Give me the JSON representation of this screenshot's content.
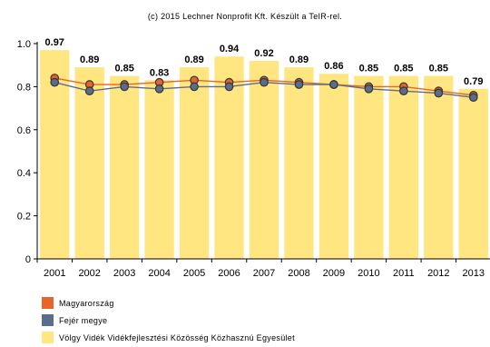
{
  "chart_data": {
    "type": "bar",
    "title": "(c) 2015 Lechner Nonprofit Kft. Készült a TeIR-rel.",
    "categories": [
      "2001",
      "2002",
      "2003",
      "2004",
      "2005",
      "2006",
      "2007",
      "2008",
      "2009",
      "2010",
      "2011",
      "2012",
      "2013"
    ],
    "ylim": [
      0,
      1.0
    ],
    "yticks": [
      "0",
      "0.2",
      "0.4",
      "0.6",
      "0.8",
      "1.0"
    ],
    "grid": false,
    "series": [
      {
        "name": "Völgy Vidék Vidékfejlesztési Közösség Közhasznú Egyesület",
        "kind": "bar",
        "color": "#FFE680",
        "values": [
          0.97,
          0.89,
          0.85,
          0.83,
          0.89,
          0.94,
          0.92,
          0.89,
          0.86,
          0.85,
          0.85,
          0.85,
          0.79
        ],
        "labels": [
          "0.97",
          "0.89",
          "0.85",
          "0.83",
          "0.89",
          "0.94",
          "0.92",
          "0.89",
          "0.86",
          "0.85",
          "0.85",
          "0.85",
          "0.79"
        ]
      },
      {
        "name": "Magyarország",
        "kind": "line",
        "color": "#E8642C",
        "values": [
          0.84,
          0.81,
          0.81,
          0.82,
          0.83,
          0.82,
          0.83,
          0.82,
          0.81,
          0.8,
          0.8,
          0.78,
          0.76
        ]
      },
      {
        "name": "Fejér megye",
        "kind": "line",
        "color": "#5A6E8C",
        "values": [
          0.82,
          0.78,
          0.8,
          0.79,
          0.8,
          0.8,
          0.82,
          0.81,
          0.81,
          0.79,
          0.78,
          0.77,
          0.75
        ]
      }
    ]
  },
  "legend": {
    "items": [
      {
        "label": "Magyarország",
        "color": "#E8642C"
      },
      {
        "label": "Fejér megye",
        "color": "#5A6E8C"
      },
      {
        "label": "Völgy Vidék Vidékfejlesztési Közösség Közhasznú Egyesület",
        "color": "#FFE680"
      }
    ]
  }
}
